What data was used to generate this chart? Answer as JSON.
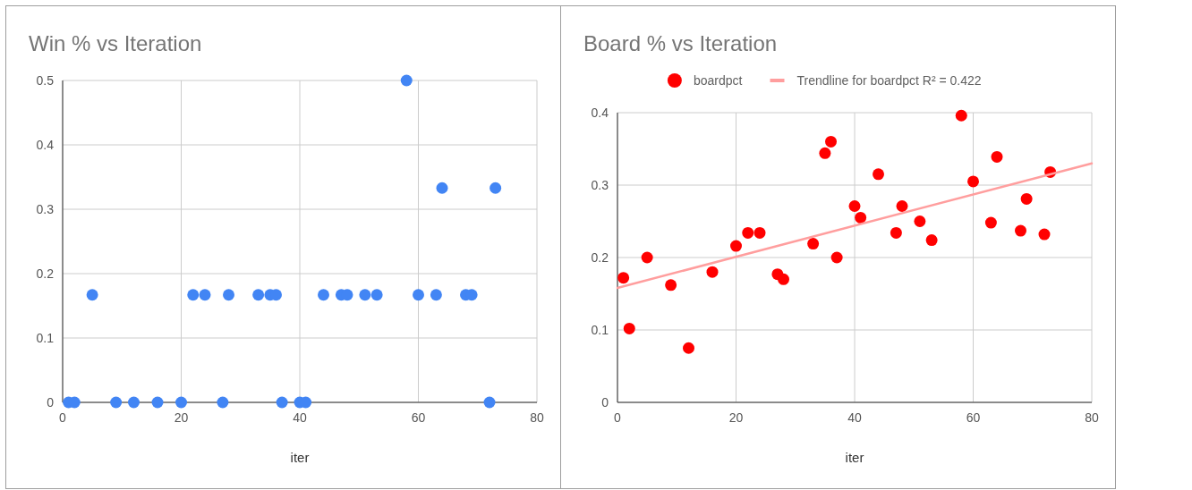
{
  "chart_data": [
    {
      "type": "scatter",
      "title": "Win % vs Iteration",
      "xlabel": "iter",
      "xlim": [
        0,
        80
      ],
      "xticks": [
        0,
        20,
        40,
        60,
        80
      ],
      "ylim": [
        0,
        0.5
      ],
      "yticks": [
        0,
        0.1,
        0.2,
        0.3,
        0.4,
        0.5
      ],
      "grid": true,
      "legend": false,
      "marker": "circle",
      "series": [
        {
          "color": "#4285f4",
          "x": [
            1,
            2,
            9,
            12,
            16,
            20,
            27,
            37,
            40,
            41,
            72,
            5,
            22,
            24,
            28,
            33,
            35,
            36,
            44,
            47,
            48,
            51,
            53,
            60,
            63,
            68,
            69,
            64,
            73,
            58
          ],
          "values": [
            0,
            0,
            0,
            0,
            0,
            0,
            0,
            0,
            0,
            0,
            0,
            0.167,
            0.167,
            0.167,
            0.167,
            0.167,
            0.167,
            0.167,
            0.167,
            0.167,
            0.167,
            0.167,
            0.167,
            0.167,
            0.167,
            0.167,
            0.167,
            0.333,
            0.333,
            0.5
          ]
        }
      ]
    },
    {
      "type": "scatter",
      "title": "Board % vs Iteration",
      "xlabel": "iter",
      "xlim": [
        0,
        80
      ],
      "xticks": [
        0,
        20,
        40,
        60,
        80
      ],
      "ylim": [
        0,
        0.4
      ],
      "yticks": [
        0,
        0.1,
        0.2,
        0.3,
        0.4
      ],
      "grid": true,
      "legend": "top",
      "series": [
        {
          "name": "boardpct",
          "color": "#ff0000",
          "marker": "circle",
          "x": [
            1,
            2,
            5,
            9,
            12,
            16,
            20,
            22,
            24,
            27,
            28,
            33,
            35,
            36,
            37,
            40,
            41,
            44,
            47,
            48,
            51,
            53,
            58,
            60,
            63,
            64,
            68,
            69,
            72,
            73
          ],
          "values": [
            0.172,
            0.102,
            0.2,
            0.162,
            0.075,
            0.18,
            0.216,
            0.234,
            0.234,
            0.177,
            0.17,
            0.219,
            0.344,
            0.36,
            0.2,
            0.271,
            0.255,
            0.315,
            0.234,
            0.271,
            0.25,
            0.224,
            0.396,
            0.305,
            0.248,
            0.339,
            0.237,
            0.281,
            0.232,
            0.318
          ]
        },
        {
          "type": "line",
          "name": "Trendline for boardpct R² = 0.422",
          "color": "#ff9e9e",
          "marker": "none",
          "x": [
            0,
            80
          ],
          "values": [
            0.158,
            0.33
          ]
        }
      ]
    }
  ]
}
